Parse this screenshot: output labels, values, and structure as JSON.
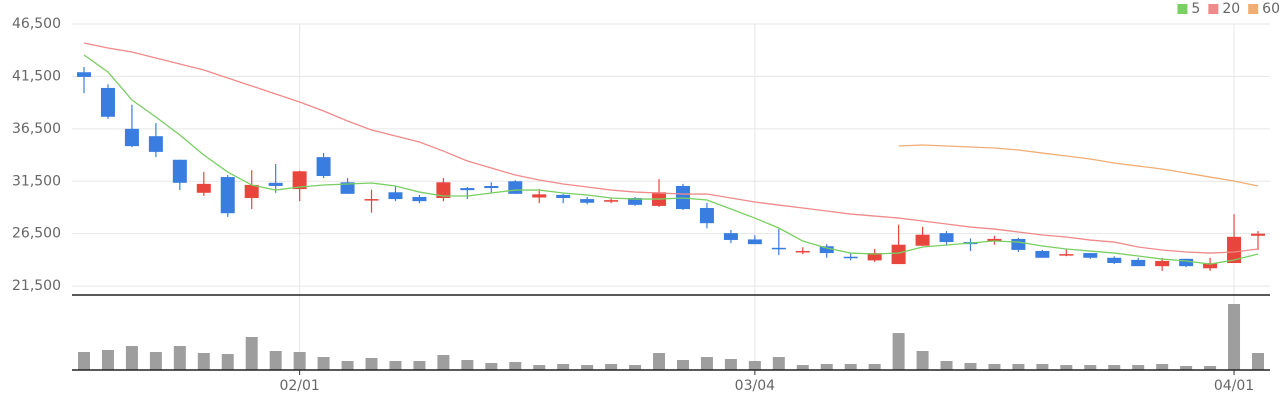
{
  "chart_data": {
    "type": "candlestick",
    "categories": [
      null,
      null,
      null,
      null,
      null,
      null,
      null,
      null,
      null,
      "02/01",
      null,
      null,
      null,
      null,
      null,
      null,
      null,
      null,
      null,
      null,
      null,
      null,
      null,
      null,
      null,
      null,
      null,
      null,
      "03/04",
      null,
      null,
      null,
      null,
      null,
      null,
      null,
      null,
      null,
      null,
      null,
      null,
      null,
      null,
      null,
      null,
      null,
      null,
      null,
      "04/01",
      null
    ],
    "open": [
      41900,
      40400,
      36500,
      35800,
      33550,
      30400,
      31900,
      29900,
      31350,
      30750,
      33800,
      31400,
      29700,
      30450,
      30000,
      29900,
      30850,
      31050,
      31500,
      29950,
      30200,
      29800,
      29550,
      29900,
      29150,
      31050,
      28950,
      26550,
      25950,
      25150,
      24750,
      25300,
      24300,
      23950,
      23600,
      25350,
      26550,
      25700,
      25800,
      26000,
      24850,
      24450,
      24650,
      24200,
      24000,
      23400,
      24100,
      23200,
      23700,
      26300
    ],
    "high": [
      42400,
      40750,
      38800,
      37050,
      33550,
      32400,
      32100,
      32550,
      33150,
      32500,
      34200,
      31800,
      30700,
      31050,
      30200,
      31800,
      30950,
      31400,
      31600,
      30750,
      30300,
      30000,
      29900,
      30000,
      31700,
      31250,
      29450,
      26850,
      26350,
      26950,
      25200,
      25500,
      24650,
      25050,
      27350,
      27150,
      26750,
      26050,
      26300,
      26100,
      24950,
      25050,
      24650,
      24350,
      24200,
      24200,
      24100,
      24200,
      28350,
      26750
    ],
    "low": [
      39900,
      37450,
      34750,
      33800,
      30650,
      30100,
      28100,
      28850,
      30400,
      29600,
      31800,
      30300,
      28500,
      29600,
      29400,
      29600,
      29800,
      30400,
      30300,
      29400,
      29400,
      29300,
      29400,
      29150,
      29050,
      28750,
      27000,
      25600,
      25500,
      24450,
      24550,
      24200,
      23950,
      23800,
      23600,
      25350,
      25350,
      24850,
      25450,
      24750,
      24200,
      24350,
      24100,
      23600,
      23400,
      22950,
      23300,
      22950,
      23700,
      24950
    ],
    "close": [
      41450,
      37650,
      34850,
      34300,
      31350,
      31250,
      28450,
      31150,
      31050,
      32450,
      32000,
      30300,
      29800,
      29800,
      29600,
      31400,
      30650,
      30850,
      30300,
      30250,
      29900,
      29450,
      29700,
      29250,
      30450,
      28850,
      27500,
      25900,
      25500,
      25050,
      24850,
      24650,
      24200,
      24650,
      25450,
      26400,
      25700,
      25500,
      26000,
      24950,
      24200,
      24550,
      24200,
      23700,
      23400,
      23900,
      23400,
      23700,
      26200,
      26500
    ],
    "up_color": "#e8453c",
    "down_color": "#3a7de0",
    "volume": [
      18,
      20,
      24,
      18,
      24,
      17,
      16,
      33,
      19,
      18,
      13,
      9,
      12,
      9,
      9,
      15,
      10,
      7,
      8,
      5,
      6,
      5,
      6,
      5,
      17,
      10,
      13,
      11,
      9,
      13,
      5,
      6,
      6,
      6,
      37,
      19,
      9,
      7,
      6,
      6,
      6,
      5,
      5,
      5,
      5,
      6,
      4,
      4,
      66,
      17
    ],
    "volume_color": "#9e9e9e",
    "volume_ylim": [
      0,
      75
    ],
    "series": [
      {
        "name": "5",
        "color": "#78cf62",
        "values": [
          43540,
          41920,
          39250,
          37630,
          35910,
          34000,
          32380,
          31140,
          30660,
          30950,
          31140,
          31240,
          31330,
          31050,
          30470,
          30090,
          30090,
          30380,
          30660,
          30660,
          30380,
          30190,
          29900,
          29800,
          29800,
          29900,
          29710,
          28850,
          27990,
          27040,
          25800,
          25130,
          24650,
          24560,
          24650,
          25230,
          25420,
          25610,
          25800,
          25700,
          25320,
          25040,
          24840,
          24650,
          24370,
          24080,
          23890,
          23600,
          23990,
          24560
        ]
      },
      {
        "name": "20",
        "color": "#ef8a8a",
        "values": [
          44690,
          44210,
          43830,
          43260,
          42680,
          42110,
          41350,
          40590,
          39820,
          39060,
          38200,
          37250,
          36390,
          35820,
          35240,
          34380,
          33430,
          32760,
          32100,
          31620,
          31240,
          30950,
          30660,
          30470,
          30380,
          30280,
          30280,
          29900,
          29520,
          29230,
          28950,
          28660,
          28370,
          28180,
          27990,
          27710,
          27420,
          27130,
          26940,
          26660,
          26370,
          26180,
          25890,
          25700,
          25230,
          24940,
          24750,
          24650,
          24750,
          25040
        ]
      },
      {
        "name": "60",
        "color": "#f0ad74",
        "values": [
          null,
          null,
          null,
          null,
          null,
          null,
          null,
          null,
          null,
          null,
          null,
          null,
          null,
          null,
          null,
          null,
          null,
          null,
          null,
          null,
          null,
          null,
          null,
          null,
          null,
          null,
          null,
          null,
          null,
          null,
          null,
          null,
          null,
          null,
          34860,
          34960,
          34860,
          34770,
          34670,
          34480,
          34190,
          33910,
          33620,
          33240,
          32950,
          32670,
          32290,
          31900,
          31520,
          31050
        ]
      }
    ],
    "ylim": [
      20650,
      46500
    ],
    "yticks": [
      {
        "value": 46500,
        "label": "46,500"
      },
      {
        "value": 41500,
        "label": "41,500"
      },
      {
        "value": 36500,
        "label": "36,500"
      },
      {
        "value": 31500,
        "label": "31,500"
      },
      {
        "value": 26500,
        "label": "26,500"
      },
      {
        "value": 21500,
        "label": "21,500"
      }
    ],
    "grid": true,
    "legend": "top-right"
  }
}
